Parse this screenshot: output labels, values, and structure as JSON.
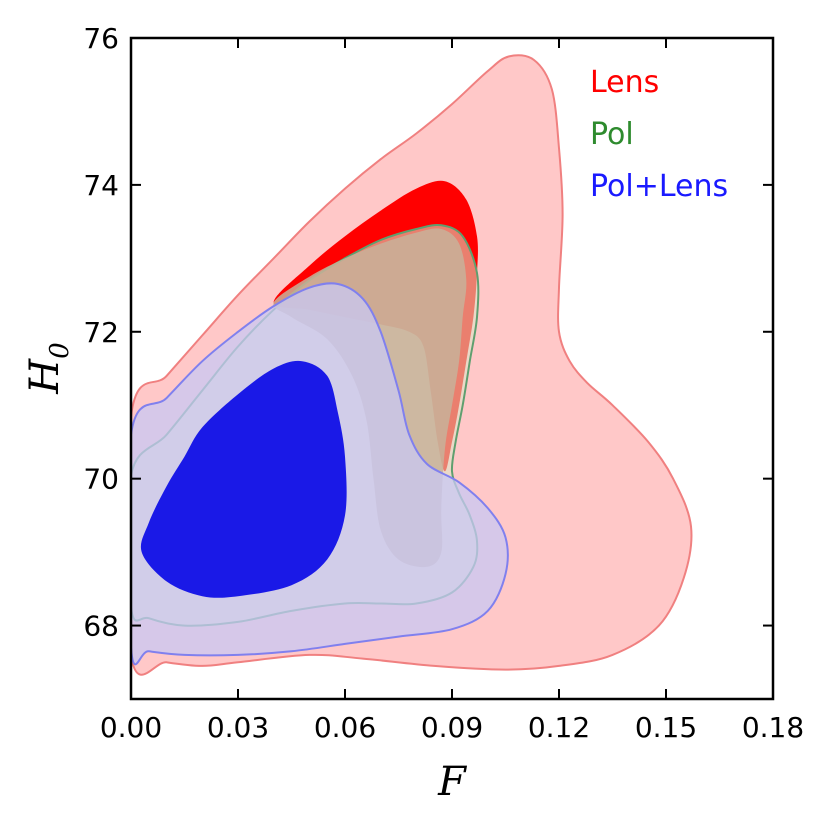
{
  "chart_data": {
    "type": "contour",
    "xlabel": "F",
    "ylabel_main": "H",
    "ylabel_sub": "0",
    "xlim": [
      0.0,
      0.18
    ],
    "ylim": [
      67.0,
      76.0
    ],
    "xticks": [
      0.0,
      0.03,
      0.06,
      0.09,
      0.12,
      0.15,
      0.18
    ],
    "xtick_labels": [
      "0.00",
      "0.03",
      "0.06",
      "0.09",
      "0.12",
      "0.15",
      "0.18"
    ],
    "yticks": [
      68,
      70,
      72,
      74,
      76
    ],
    "ytick_labels": [
      "68",
      "70",
      "72",
      "74",
      "76"
    ],
    "legend_position": "top-right",
    "series": [
      {
        "name": "Lens",
        "color": "#ff0000",
        "outer_fill": "#ffc8c8",
        "inner_fill": "#ff0000",
        "outer_stroke": "#f08080",
        "outer": [
          [
            0.0,
            70.85
          ],
          [
            0.01,
            71.4
          ],
          [
            0.02,
            71.95
          ],
          [
            0.03,
            72.5
          ],
          [
            0.04,
            73.0
          ],
          [
            0.05,
            73.5
          ],
          [
            0.06,
            73.95
          ],
          [
            0.07,
            74.35
          ],
          [
            0.08,
            74.7
          ],
          [
            0.09,
            75.1
          ],
          [
            0.1,
            75.55
          ],
          [
            0.106,
            75.75
          ],
          [
            0.113,
            75.7
          ],
          [
            0.118,
            75.3
          ],
          [
            0.12,
            74.5
          ],
          [
            0.121,
            73.6
          ],
          [
            0.12,
            72.6
          ],
          [
            0.12,
            72.0
          ],
          [
            0.123,
            71.6
          ],
          [
            0.128,
            71.3
          ],
          [
            0.135,
            71.0
          ],
          [
            0.145,
            70.5
          ],
          [
            0.152,
            70.0
          ],
          [
            0.157,
            69.35
          ],
          [
            0.155,
            68.65
          ],
          [
            0.148,
            68.0
          ],
          [
            0.135,
            67.6
          ],
          [
            0.12,
            67.45
          ],
          [
            0.105,
            67.4
          ],
          [
            0.085,
            67.45
          ],
          [
            0.065,
            67.55
          ],
          [
            0.05,
            67.6
          ],
          [
            0.03,
            67.5
          ],
          [
            0.02,
            67.45
          ],
          [
            0.01,
            67.5
          ],
          [
            0.0,
            67.6
          ]
        ],
        "inner": [
          [
            0.04,
            72.4
          ],
          [
            0.05,
            72.9
          ],
          [
            0.06,
            73.3
          ],
          [
            0.07,
            73.65
          ],
          [
            0.08,
            73.95
          ],
          [
            0.088,
            74.05
          ],
          [
            0.094,
            73.8
          ],
          [
            0.097,
            73.3
          ],
          [
            0.097,
            72.8
          ],
          [
            0.096,
            72.2
          ],
          [
            0.094,
            71.6
          ],
          [
            0.092,
            71.0
          ],
          [
            0.09,
            70.5
          ],
          [
            0.088,
            70.1
          ],
          [
            0.086,
            70.5
          ],
          [
            0.084,
            71.2
          ],
          [
            0.082,
            71.8
          ],
          [
            0.078,
            72.0
          ],
          [
            0.07,
            72.1
          ],
          [
            0.06,
            72.2
          ],
          [
            0.05,
            72.3
          ]
        ]
      },
      {
        "name": "Pol",
        "color": "#2e8b2e",
        "outer_fill": "#d9e8c9",
        "inner_fill": "#c8b29a",
        "outer_stroke": "#5f9f6f",
        "outer": [
          [
            0.0,
            70.05
          ],
          [
            0.01,
            70.6
          ],
          [
            0.02,
            71.2
          ],
          [
            0.03,
            71.8
          ],
          [
            0.04,
            72.3
          ],
          [
            0.05,
            72.7
          ],
          [
            0.06,
            73.0
          ],
          [
            0.07,
            73.25
          ],
          [
            0.08,
            73.4
          ],
          [
            0.087,
            73.45
          ],
          [
            0.093,
            73.3
          ],
          [
            0.097,
            72.8
          ],
          [
            0.097,
            72.2
          ],
          [
            0.095,
            71.6
          ],
          [
            0.093,
            71.0
          ],
          [
            0.091,
            70.5
          ],
          [
            0.09,
            70.1
          ],
          [
            0.092,
            69.8
          ],
          [
            0.095,
            69.5
          ],
          [
            0.097,
            69.15
          ],
          [
            0.096,
            68.8
          ],
          [
            0.09,
            68.45
          ],
          [
            0.08,
            68.3
          ],
          [
            0.07,
            68.3
          ],
          [
            0.06,
            68.3
          ],
          [
            0.045,
            68.2
          ],
          [
            0.03,
            68.05
          ],
          [
            0.015,
            68.0
          ],
          [
            0.005,
            68.1
          ],
          [
            0.0,
            68.25
          ]
        ],
        "inner": [
          [
            0.04,
            72.4
          ],
          [
            0.05,
            72.75
          ],
          [
            0.06,
            73.0
          ],
          [
            0.07,
            73.2
          ],
          [
            0.08,
            73.35
          ],
          [
            0.087,
            73.4
          ],
          [
            0.092,
            73.2
          ],
          [
            0.094,
            72.7
          ],
          [
            0.093,
            72.2
          ],
          [
            0.092,
            71.6
          ],
          [
            0.09,
            71.0
          ],
          [
            0.088,
            70.4
          ],
          [
            0.087,
            69.6
          ],
          [
            0.087,
            69.0
          ],
          [
            0.083,
            68.8
          ],
          [
            0.075,
            68.9
          ],
          [
            0.07,
            69.3
          ],
          [
            0.068,
            70.0
          ],
          [
            0.066,
            70.8
          ],
          [
            0.062,
            71.4
          ],
          [
            0.055,
            71.9
          ],
          [
            0.045,
            72.2
          ]
        ]
      },
      {
        "name": "Pol+Lens",
        "color": "#1a1aff",
        "outer_fill": "#c8c8f4",
        "inner_fill": "#0000e6",
        "outer_stroke": "#8080ee",
        "outer": [
          [
            0.0,
            70.6
          ],
          [
            0.01,
            71.1
          ],
          [
            0.02,
            71.6
          ],
          [
            0.03,
            72.0
          ],
          [
            0.04,
            72.35
          ],
          [
            0.05,
            72.6
          ],
          [
            0.058,
            72.65
          ],
          [
            0.065,
            72.45
          ],
          [
            0.07,
            72.0
          ],
          [
            0.075,
            71.2
          ],
          [
            0.078,
            70.6
          ],
          [
            0.083,
            70.2
          ],
          [
            0.092,
            69.95
          ],
          [
            0.1,
            69.6
          ],
          [
            0.105,
            69.2
          ],
          [
            0.105,
            68.7
          ],
          [
            0.1,
            68.2
          ],
          [
            0.09,
            67.95
          ],
          [
            0.075,
            67.85
          ],
          [
            0.06,
            67.75
          ],
          [
            0.045,
            67.65
          ],
          [
            0.03,
            67.6
          ],
          [
            0.015,
            67.6
          ],
          [
            0.005,
            67.65
          ],
          [
            0.0,
            67.7
          ]
        ],
        "inner": [
          [
            0.003,
            69.0
          ],
          [
            0.005,
            69.4
          ],
          [
            0.01,
            69.9
          ],
          [
            0.015,
            70.3
          ],
          [
            0.02,
            70.7
          ],
          [
            0.03,
            71.15
          ],
          [
            0.04,
            71.5
          ],
          [
            0.048,
            71.6
          ],
          [
            0.055,
            71.4
          ],
          [
            0.058,
            70.9
          ],
          [
            0.06,
            70.3
          ],
          [
            0.06,
            69.5
          ],
          [
            0.055,
            68.9
          ],
          [
            0.045,
            68.55
          ],
          [
            0.03,
            68.4
          ],
          [
            0.02,
            68.4
          ],
          [
            0.01,
            68.6
          ]
        ]
      }
    ]
  }
}
